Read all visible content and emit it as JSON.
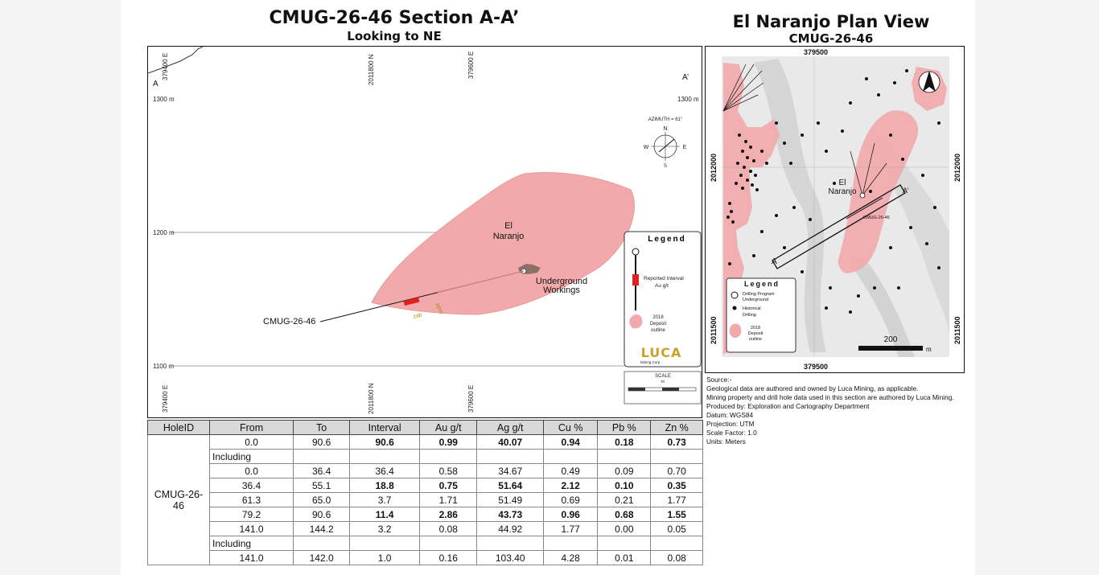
{
  "section": {
    "title": "CMUG-26-46 Section A-A’",
    "subtitle": "Looking to NE",
    "grid_labels": {
      "east_left_top": "379400 E",
      "north_mid_top": "2011800 N",
      "east_right_top": "379600 E",
      "east_left_bottom": "379400 E",
      "north_mid_bottom": "2011800 N",
      "east_right_bottom": "379600 E"
    },
    "end_labels": {
      "a": "A",
      "a_prime": "A’"
    },
    "elevations": {
      "e1300_left": "1300 m",
      "e1300_right": "1300 m",
      "e1200": "1200 m",
      "e1100": "1100 m"
    },
    "azimuth": {
      "title": "AZIMUTH = 61°",
      "n": "N",
      "s": "S",
      "e": "E",
      "w": "W"
    },
    "deposit_label_1": "El",
    "deposit_label_2": "Naranjo",
    "underground_1": "Underground",
    "underground_2": "Workings",
    "hole_label": "CMUG-26-46",
    "legend": {
      "title": "Legend",
      "reported_1": "Reported Interval",
      "reported_2": "Au g/t",
      "deposit_1": "2018",
      "deposit_2": "Deposit",
      "deposit_3": "outline",
      "logo": "LUCA",
      "logo_sub": "Mining Corp.",
      "scale_title": "SCALE",
      "scale_unit": "m"
    }
  },
  "plan": {
    "title": "El Naranjo Plan View",
    "subtitle": "CMUG-26-46",
    "grid": {
      "e_top": "379500",
      "e_bottom": "379500",
      "n_left_top": "2012000",
      "n_right_top": "2012000",
      "n_left_bottom": "2011500",
      "n_right_bottom": "2011500"
    },
    "deposit_label_1": "El",
    "deposit_label_2": "Naranjo",
    "hole_label": "CMUG-26-46",
    "a": "A",
    "a_prime": "A’",
    "scale_value": "200",
    "scale_unit": "m",
    "legend": {
      "title": "Legend",
      "item1_a": "Drilling Program",
      "item1_b": "Underground",
      "item2_a": "Historical",
      "item2_b": "Drilling",
      "item3_a": "2018",
      "item3_b": "Deposit",
      "item3_c": "outline"
    }
  },
  "source_notes": [
    "Source:-",
    "Geological data are authored and owned by Luca Mining, as applicable.",
    "Mining property and drill hole data used in this section are authored by Luca Mining.",
    "Produced by: Exploration and Cartography Department",
    "Datum: WGS84",
    "Projection: UTM",
    "Scale Factor: 1.0",
    "Units: Meters"
  ],
  "table": {
    "headers": [
      "HoleID",
      "From",
      "To",
      "Interval",
      "Au g/t",
      "Ag g/t",
      "Cu %",
      "Pb %",
      "Zn %"
    ],
    "hole_id": "CMUG-26-46",
    "rows": [
      [
        "0.0",
        "90.6",
        "90.6",
        "0.99",
        "40.07",
        "0.94",
        "0.18",
        "0.73"
      ],
      [
        "Including"
      ],
      [
        "0.0",
        "36.4",
        "36.4",
        "0.58",
        "34.67",
        "0.49",
        "0.09",
        "0.70"
      ],
      [
        "36.4",
        "55.1",
        "18.8",
        "0.75",
        "51.64",
        "2.12",
        "0.10",
        "0.35"
      ],
      [
        "61.3",
        "65.0",
        "3.7",
        "1.71",
        "51.49",
        "0.69",
        "0.21",
        "1.77"
      ],
      [
        "79.2",
        "90.6",
        "11.4",
        "2.86",
        "43.73",
        "0.96",
        "0.68",
        "1.55"
      ],
      [
        "141.0",
        "144.2",
        "3.2",
        "0.08",
        "44.92",
        "1.77",
        "0.00",
        "0.05"
      ],
      [
        "Including"
      ],
      [
        "141.0",
        "142.0",
        "1.0",
        "0.16",
        "103.40",
        "4.28",
        "0.01",
        "0.08"
      ]
    ]
  },
  "colors": {
    "deposit": "#f2a9ab",
    "interval": "#e02020",
    "accent_gold": "#c9a227"
  }
}
